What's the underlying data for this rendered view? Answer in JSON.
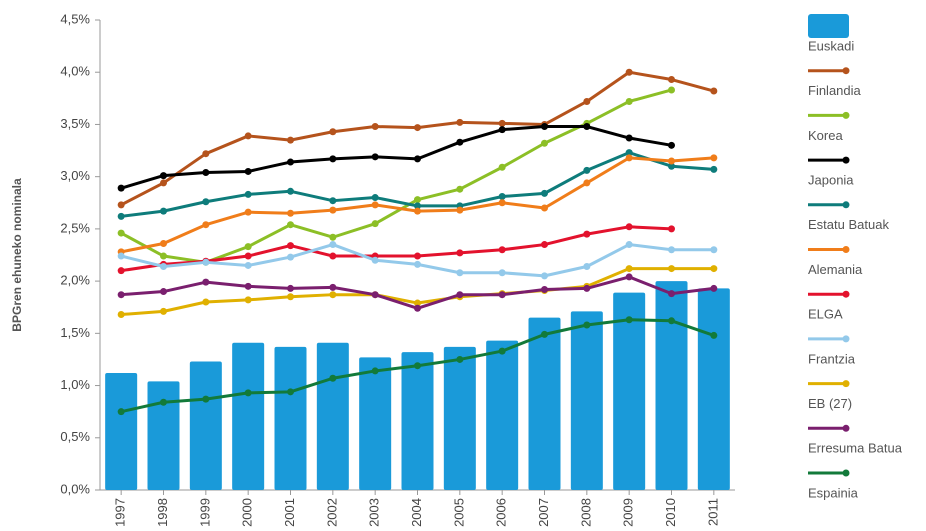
{
  "chart_data": {
    "type": "combo",
    "ylabel": "BPGren ehuneko nominala",
    "categories": [
      "1997",
      "1998",
      "1999",
      "2000",
      "2001",
      "2002",
      "2003",
      "2004",
      "2005",
      "2006",
      "2007",
      "2008",
      "2009",
      "2010",
      "2011"
    ],
    "ylim": [
      0,
      4.5
    ],
    "yticks": [
      {
        "value": 0,
        "label": "0,0%"
      },
      {
        "value": 0.5,
        "label": "0,5%"
      },
      {
        "value": 1,
        "label": "1,0%"
      },
      {
        "value": 1.5,
        "label": "1,5%"
      },
      {
        "value": 2,
        "label": "2,0%"
      },
      {
        "value": 2.5,
        "label": "2,5%"
      },
      {
        "value": 3,
        "label": "3,0%"
      },
      {
        "value": 3.5,
        "label": "3,5%"
      },
      {
        "value": 4,
        "label": "4,0%"
      },
      {
        "value": 4.5,
        "label": "4,5%"
      }
    ],
    "grid": false,
    "series": [
      {
        "name": "Euskadi",
        "type": "bar",
        "color": "#1a9ad9",
        "values": [
          1.12,
          1.04,
          1.23,
          1.41,
          1.37,
          1.41,
          1.27,
          1.32,
          1.37,
          1.43,
          1.65,
          1.71,
          1.89,
          2.0,
          1.93
        ]
      },
      {
        "name": "Finlandia",
        "type": "line",
        "color": "#b5531c",
        "values": [
          2.73,
          2.94,
          3.22,
          3.39,
          3.35,
          3.43,
          3.48,
          3.47,
          3.52,
          3.51,
          3.5,
          3.72,
          4.0,
          3.93,
          3.82
        ]
      },
      {
        "name": "Korea",
        "type": "line",
        "color": "#8cbf26",
        "values": [
          2.46,
          2.24,
          2.18,
          2.33,
          2.54,
          2.42,
          2.55,
          2.78,
          2.88,
          3.09,
          3.32,
          3.51,
          3.72,
          3.83,
          null
        ]
      },
      {
        "name": "Japonia",
        "type": "line",
        "color": "#000000",
        "values": [
          2.89,
          3.01,
          3.04,
          3.05,
          3.14,
          3.17,
          3.19,
          3.17,
          3.33,
          3.45,
          3.48,
          3.48,
          3.37,
          3.3,
          null
        ]
      },
      {
        "name": "Estatu Batuak",
        "type": "line",
        "color": "#0e7c7b",
        "values": [
          2.62,
          2.67,
          2.76,
          2.83,
          2.86,
          2.77,
          2.8,
          2.72,
          2.72,
          2.81,
          2.84,
          3.06,
          3.23,
          3.1,
          3.07
        ]
      },
      {
        "name": "Alemania",
        "type": "line",
        "color": "#f07d1a",
        "values": [
          2.28,
          2.36,
          2.54,
          2.66,
          2.65,
          2.68,
          2.73,
          2.67,
          2.68,
          2.75,
          2.7,
          2.94,
          3.18,
          3.15,
          3.18
        ]
      },
      {
        "name": "ELGA",
        "type": "line",
        "color": "#e3122d",
        "values": [
          2.1,
          2.16,
          2.19,
          2.24,
          2.34,
          2.24,
          2.24,
          2.24,
          2.27,
          2.3,
          2.35,
          2.45,
          2.52,
          2.5,
          null
        ]
      },
      {
        "name": "Frantzia",
        "type": "line",
        "color": "#93c9ea",
        "values": [
          2.24,
          2.14,
          2.18,
          2.15,
          2.23,
          2.35,
          2.2,
          2.16,
          2.08,
          2.08,
          2.05,
          2.14,
          2.35,
          2.3,
          2.3
        ]
      },
      {
        "name": "EB (27)",
        "type": "line",
        "color": "#e0b000",
        "values": [
          1.68,
          1.71,
          1.8,
          1.82,
          1.85,
          1.87,
          1.87,
          1.79,
          1.85,
          1.88,
          1.91,
          1.95,
          2.12,
          2.12,
          2.12
        ]
      },
      {
        "name": "Erresuma Batua",
        "type": "line",
        "color": "#7a1f6e",
        "values": [
          1.87,
          1.9,
          1.99,
          1.95,
          1.93,
          1.94,
          1.87,
          1.74,
          1.87,
          1.87,
          1.92,
          1.93,
          2.04,
          1.88,
          1.93
        ]
      },
      {
        "name": "Espainia",
        "type": "line",
        "color": "#127a3a",
        "values": [
          0.75,
          0.84,
          0.87,
          0.93,
          0.94,
          1.07,
          1.14,
          1.19,
          1.25,
          1.33,
          1.49,
          1.58,
          1.63,
          1.62,
          1.48
        ]
      }
    ]
  }
}
